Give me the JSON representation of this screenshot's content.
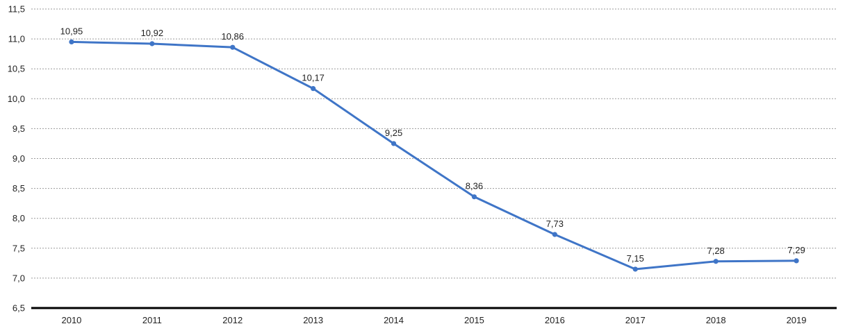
{
  "chart_data": {
    "type": "line",
    "title": "",
    "xlabel": "",
    "ylabel": "",
    "x": [
      "2010",
      "2011",
      "2012",
      "2013",
      "2014",
      "2015",
      "2016",
      "2017",
      "2018",
      "2019"
    ],
    "series": [
      {
        "values": [
          10.95,
          10.92,
          10.86,
          10.17,
          9.25,
          8.36,
          7.73,
          7.15,
          7.28,
          7.29
        ],
        "labels": [
          "10,95",
          "10,92",
          "10,86",
          "10,17",
          "9,25",
          "8,36",
          "7,73",
          "7,15",
          "7,28",
          "7,29"
        ]
      }
    ],
    "ylim": [
      6.5,
      11.5
    ],
    "y_ticks": [
      6.5,
      7.0,
      7.5,
      8.0,
      8.5,
      9.0,
      9.5,
      10.0,
      10.5,
      11.0,
      11.5
    ],
    "y_tick_labels": [
      "6,5",
      "7,0",
      "7,5",
      "8,0",
      "8,5",
      "9,0",
      "9,5",
      "10,0",
      "10,5",
      "11,0",
      "11,5"
    ],
    "grid": true,
    "grid_style": "dashed",
    "legend": "none",
    "colors": {
      "line": "#3f75c7",
      "grid": "#9a9a9a",
      "axis": "#000000",
      "text": "#222222"
    }
  }
}
